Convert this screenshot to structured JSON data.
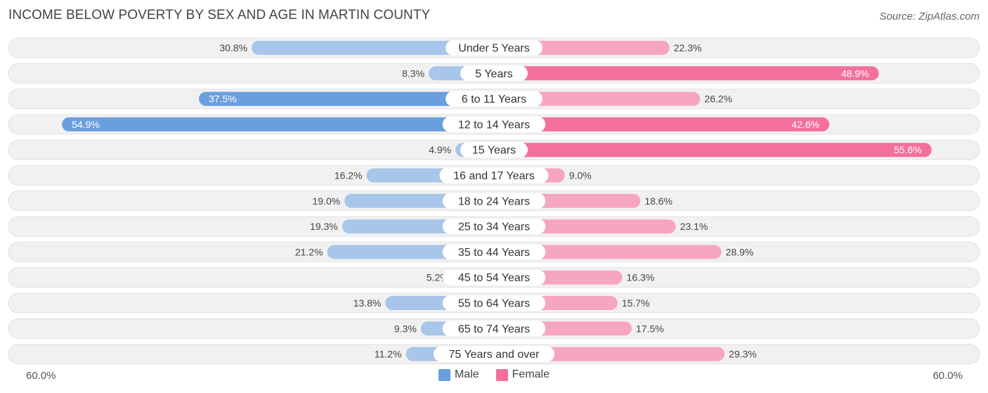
{
  "title": "INCOME BELOW POVERTY BY SEX AND AGE IN MARTIN COUNTY",
  "source": "Source: ZipAtlas.com",
  "colors": {
    "male": "#6a9fdd",
    "male_light": "#a7c6ea",
    "female": "#f46f9a",
    "female_light": "#f7a6bf",
    "row_bg": "#f1f1f1"
  },
  "legend": {
    "male": "Male",
    "female": "Female"
  },
  "axis": {
    "left_label": "60.0%",
    "right_label": "60.0%"
  },
  "chart_data": {
    "type": "bar",
    "orientation": "horizontal-diverging",
    "title": "INCOME BELOW POVERTY BY SEX AND AGE IN MARTIN COUNTY",
    "categories": [
      "Under 5 Years",
      "5 Years",
      "6 to 11 Years",
      "12 to 14 Years",
      "15 Years",
      "16 and 17 Years",
      "18 to 24 Years",
      "25 to 34 Years",
      "35 to 44 Years",
      "45 to 54 Years",
      "55 to 64 Years",
      "65 to 74 Years",
      "75 Years and over"
    ],
    "series": [
      {
        "name": "Male",
        "values": [
          30.8,
          8.3,
          37.5,
          54.9,
          4.9,
          16.2,
          19.0,
          19.3,
          21.2,
          5.2,
          13.8,
          9.3,
          11.2
        ],
        "labels": [
          "30.8%",
          "8.3%",
          "37.5%",
          "54.9%",
          "4.9%",
          "16.2%",
          "19.0%",
          "19.3%",
          "21.2%",
          "5.2%",
          "13.8%",
          "9.3%",
          "11.2%"
        ]
      },
      {
        "name": "Female",
        "values": [
          22.3,
          48.9,
          26.2,
          42.6,
          55.6,
          9.0,
          18.6,
          23.1,
          28.9,
          16.3,
          15.7,
          17.5,
          29.3
        ],
        "labels": [
          "22.3%",
          "48.9%",
          "26.2%",
          "42.6%",
          "55.6%",
          "9.0%",
          "18.6%",
          "23.1%",
          "28.9%",
          "16.3%",
          "15.7%",
          "17.5%",
          "29.3%"
        ]
      }
    ],
    "xlim": [
      -60,
      60
    ],
    "legend_position": "bottom-center"
  }
}
